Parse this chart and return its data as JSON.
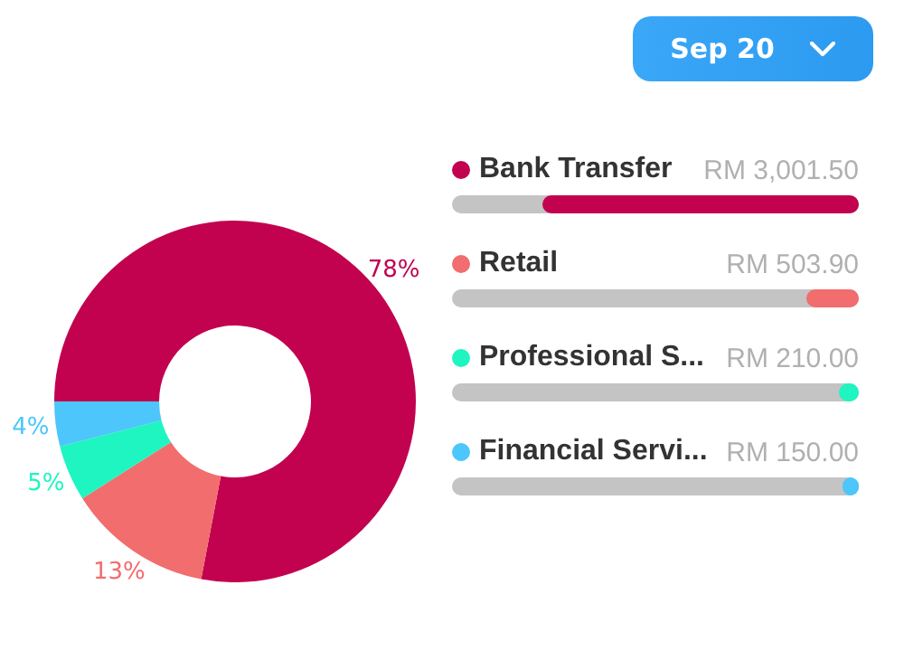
{
  "chart_data": {
    "type": "donut",
    "categories": [
      "Bank Transfer",
      "Retail",
      "Professional S...",
      "Financial Servi..."
    ],
    "values": [
      78,
      13,
      5,
      4
    ],
    "colors": [
      "#c2024f",
      "#f26d6d",
      "#1ef5c0",
      "#4cc6fb"
    ],
    "value_labels": [
      "78%",
      "13%",
      "5%",
      "4%"
    ],
    "legend": "right",
    "annotations": [
      "Sep 20",
      "RM 3,001.50",
      "RM 503.90",
      "RM 210.00",
      "RM 150.00"
    ]
  }
}
